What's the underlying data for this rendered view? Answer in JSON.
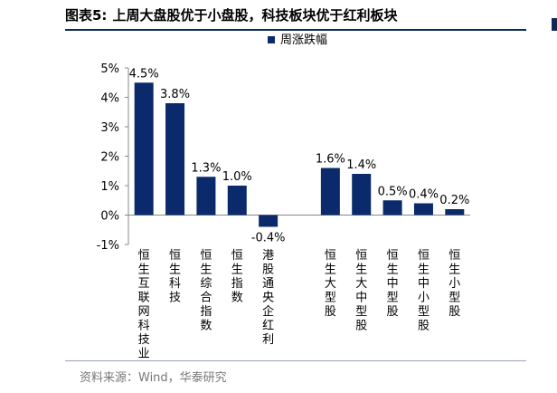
{
  "figure": {
    "label": "图表5:",
    "title": "上周大盘股优于小盘股，科技板块优于红利板块",
    "source": "资料来源：Wind，华泰研究"
  },
  "chart_data": {
    "type": "bar",
    "legend": {
      "entries": [
        "周涨跌幅"
      ],
      "placement": "top-right"
    },
    "categories": [
      "恒生互联网科技业",
      "恒生科技",
      "恒生综合指数",
      "恒生指数",
      "港股通央企红利",
      "",
      "恒生大型股",
      "恒生大中型股",
      "恒生中型股",
      "恒生中小型股",
      "恒生小型股"
    ],
    "series": [
      {
        "name": "周涨跌幅",
        "values": [
          4.5,
          3.8,
          1.3,
          1.0,
          -0.4,
          null,
          1.6,
          1.4,
          0.5,
          0.4,
          0.2
        ],
        "data_labels": [
          "4.5%",
          "3.8%",
          "1.3%",
          "1.0%",
          "-0.4%",
          "",
          "1.6%",
          "1.4%",
          "0.5%",
          "0.4%",
          "0.2%"
        ]
      }
    ],
    "ylim": [
      -1,
      5
    ],
    "yticks": [
      -1,
      0,
      1,
      2,
      3,
      4,
      5
    ],
    "ytick_labels": [
      "-1%",
      "0%",
      "1%",
      "2%",
      "3%",
      "4%",
      "5%"
    ],
    "colors": {
      "bar": "#0b2a6b",
      "axis": "#888888"
    },
    "grid": false
  }
}
